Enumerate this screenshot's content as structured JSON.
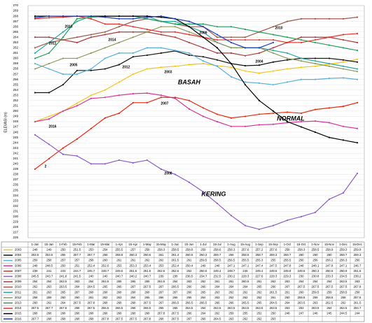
{
  "chart_data": {
    "type": "line",
    "y_label": "ELEVASI (m)",
    "ylim": [
      226,
      270
    ],
    "yticks": [
      226,
      227,
      228,
      229,
      230,
      231,
      232,
      233,
      234,
      235,
      236,
      237,
      238,
      239,
      240,
      241,
      242,
      243,
      244,
      245,
      246,
      247,
      248,
      249,
      250,
      251,
      252,
      253,
      254,
      255,
      256,
      257,
      258,
      259,
      260,
      261,
      262,
      263,
      264,
      265,
      266,
      267,
      268,
      269,
      270
    ],
    "grid": true,
    "categories": [
      "1-Jan",
      "15-Jan",
      "1-Feb",
      "15-Feb",
      "1-Mar",
      "15-Mar",
      "1-Apr",
      "15-Apr",
      "1-May",
      "15-May",
      "1-Jun",
      "15-Jun",
      "1-Jul",
      "15-Jul",
      "1-Aug",
      "15-Aug",
      "1-Sep",
      "15-Sep",
      "1-Oct",
      "15-Oct",
      "1-Nov",
      "15-Nov",
      "1-Dec",
      "15-Dec"
    ],
    "annotations": [
      "BASAH",
      "NORMAL",
      "KERING",
      "2003",
      "2004",
      "2005",
      "2008",
      "2009",
      "2010",
      "2011",
      "2012",
      "2013",
      "2014",
      "2016",
      "2007",
      "2"
    ],
    "series": [
      {
        "name": "2003",
        "color": "#f5c518",
        "values": [
          248,
          249,
          250,
          251.5,
          253,
          254,
          255.5,
          257,
          258,
          258.3,
          258.5,
          258.8,
          259,
          258.6,
          258.3,
          257.6,
          257.2,
          257.6,
          258,
          258.3,
          258.5,
          258.9,
          259.3,
          259.8
        ]
      },
      {
        "name": "2004",
        "color": "#111111",
        "values": [
          253.5,
          253.5,
          255,
          257.7,
          257.7,
          258,
          258.8,
          260.3,
          260.6,
          261,
          261.4,
          260.6,
          260.3,
          259.7,
          259,
          258.6,
          258.7,
          259.3,
          259.7,
          260,
          260,
          260,
          259.7,
          259.3
        ]
      },
      {
        "name": "2005",
        "color": "#5ab0d8",
        "values": [
          259,
          258,
          257,
          257,
          258,
          260,
          261,
          261,
          262,
          262,
          261.5,
          261,
          259.5,
          258.5,
          256.5,
          255.5,
          255.3,
          255,
          255.5,
          256,
          256,
          256.2,
          256.3,
          256
        ]
      },
      {
        "name": "2006",
        "color": "#d9369a",
        "values": [
          248,
          248.5,
          250,
          251,
          252.4,
          252.6,
          253,
          253.3,
          253.4,
          253,
          252.4,
          250.4,
          249,
          248,
          247.1,
          247.1,
          247.4,
          247.5,
          247.8,
          248,
          248.1,
          247.8,
          247.1,
          246.7
        ]
      },
      {
        "name": "2007",
        "color": "#e8280c",
        "values": [
          239,
          241,
          243,
          244.7,
          246.7,
          248.7,
          249.6,
          251.6,
          251.6,
          252.6,
          252.6,
          252,
          250.6,
          249.4,
          248.7,
          249,
          249.4,
          249.6,
          249.8,
          249.6,
          250.3,
          250.6,
          250.9,
          251.6
        ]
      },
      {
        "name": "2008",
        "color": "#8e5cc8",
        "values": [
          245.5,
          243.7,
          241.8,
          241.5,
          240,
          240,
          240.7,
          240.2,
          240.7,
          239,
          238,
          236.5,
          234.7,
          232.5,
          230.2,
          228.3,
          227.6,
          228.3,
          229.3,
          230,
          230.8,
          233.3,
          234.5,
          238.2
        ]
      },
      {
        "name": "2009",
        "color": "#a83a3a",
        "values": [
          264,
          264,
          263.5,
          263,
          264,
          264.5,
          265,
          265,
          265,
          264.5,
          264,
          263,
          262,
          261,
          261,
          260.5,
          261,
          262,
          263,
          264,
          264,
          264,
          263.5,
          263
        ]
      },
      {
        "name": "2010",
        "color": "#9c5a4a",
        "values": [
          262,
          263,
          263.5,
          264,
          264.5,
          265,
          266,
          267,
          267.5,
          267,
          266.5,
          266,
          266,
          264,
          264,
          264,
          265,
          266,
          267,
          267.5,
          267.5,
          267.5,
          267.5,
          267.8
        ]
      },
      {
        "name": "2011",
        "color": "#2aa7a0",
        "values": [
          261,
          263,
          265,
          267,
          268,
          268,
          268,
          268,
          268,
          267,
          267,
          266,
          265,
          263,
          262,
          262,
          262,
          261.5,
          261,
          260,
          259.5,
          259,
          258.5,
          258
        ]
      },
      {
        "name": "2012",
        "color": "#8a9a5b",
        "values": [
          258,
          259,
          260,
          260,
          261,
          262,
          263,
          264,
          265,
          266,
          266,
          265,
          264,
          263,
          262,
          262,
          262,
          261,
          260,
          259.5,
          259,
          258.5,
          258,
          257.5
        ]
      },
      {
        "name": "2013",
        "color": "#22a05a",
        "values": [
          260,
          261,
          264,
          267.5,
          267.8,
          268,
          268,
          268,
          267.5,
          267,
          266.5,
          266.5,
          266.5,
          266,
          266,
          265.5,
          265,
          264.5,
          264,
          263.5,
          263,
          262.5,
          262,
          261.5
        ]
      },
      {
        "name": "2014",
        "color": "#e8302a",
        "values": [
          267.5,
          267.7,
          267.8,
          268,
          267.5,
          266.5,
          266.5,
          266,
          265.5,
          265,
          265,
          264.5,
          264,
          263.5,
          263.5,
          263.5,
          263.5,
          263.5,
          263,
          263,
          263.5,
          264,
          264.5,
          264.7
        ]
      },
      {
        "name": "2015",
        "color": "#000000",
        "values": [
          268,
          268,
          268,
          268,
          268,
          268,
          268,
          268,
          268,
          267.8,
          267.5,
          266,
          264,
          262,
          259,
          255,
          252,
          250,
          248,
          247,
          246,
          245,
          244.5,
          244
        ]
      },
      {
        "name": "2016",
        "color": "#1f3fbf",
        "values": [
          267.7,
          268,
          268,
          268,
          268,
          267.8,
          267.5,
          267.5,
          267.8,
          268,
          267.5,
          267,
          266,
          264.5,
          263,
          262,
          262,
          263,
          null,
          null,
          null,
          null,
          null,
          null
        ]
      }
    ]
  }
}
